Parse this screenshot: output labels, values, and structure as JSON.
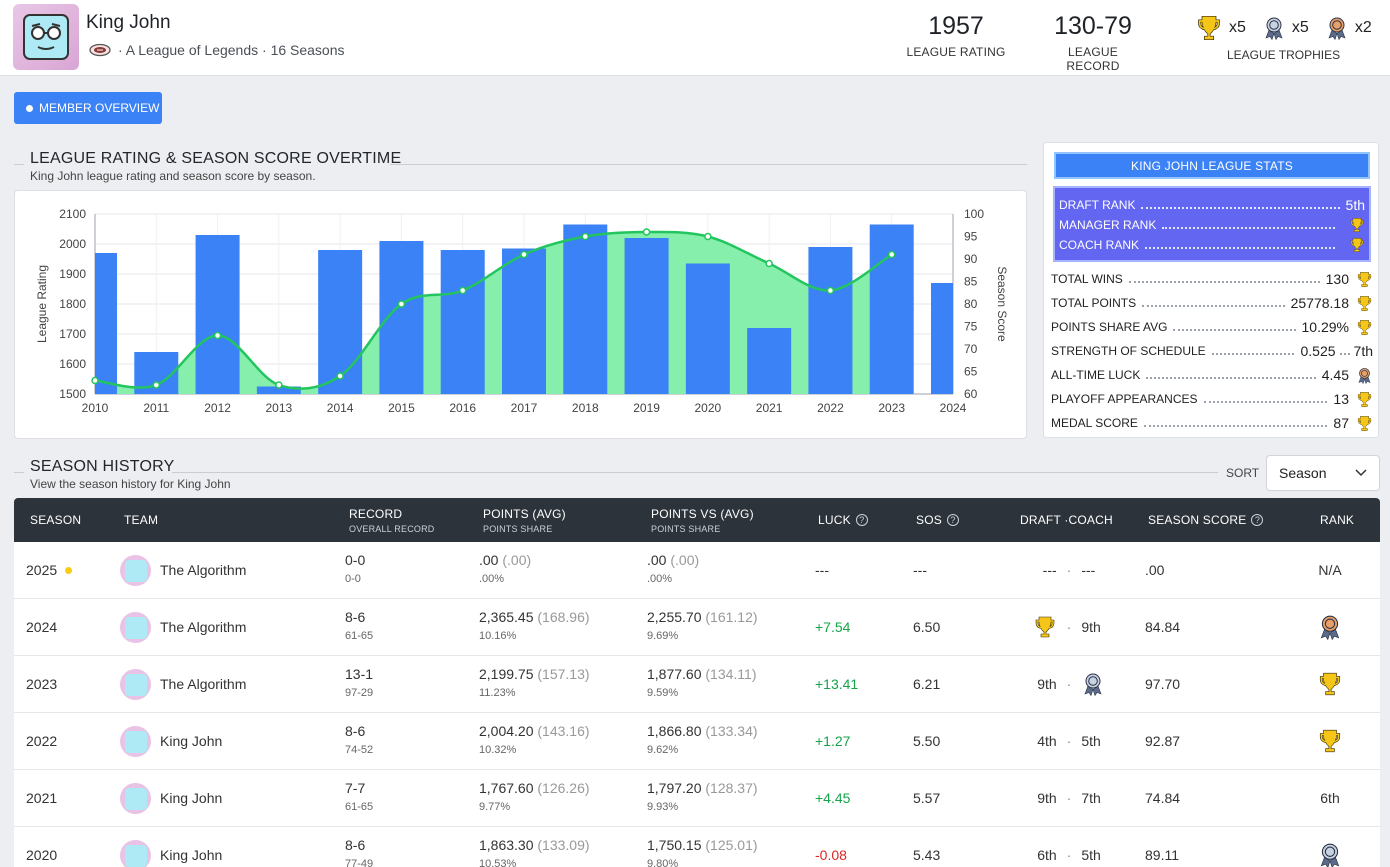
{
  "header": {
    "manager_name": "King John",
    "subline": "· A League of Legends · 16 Seasons",
    "league_rating": {
      "value": "1957",
      "label": "LEAGUE RATING"
    },
    "league_record": {
      "value": "130-79",
      "label": "LEAGUE RECORD"
    },
    "trophies": {
      "label": "LEAGUE TROPHIES",
      "gold": "x5",
      "silver": "x5",
      "bronze": "x2"
    }
  },
  "member_overview_button": "MEMBER OVERVIEW",
  "chart_section": {
    "title": "LEAGUE RATING & SEASON SCORE OVERTIME",
    "subtitle": "King John league rating and season score by season."
  },
  "chart_data": {
    "type": "bar",
    "x": [
      "2010",
      "2011",
      "2012",
      "2013",
      "2014",
      "2015",
      "2016",
      "2017",
      "2018",
      "2019",
      "2020",
      "2021",
      "2022",
      "2023",
      "2024"
    ],
    "ylabel": "League Rating",
    "y2label": "Season Score",
    "ylim": [
      1500,
      2100
    ],
    "y_ticks": [
      1500,
      1600,
      1700,
      1800,
      1900,
      2000,
      2100
    ],
    "y2lim": [
      60,
      100
    ],
    "y2_ticks": [
      60,
      65,
      70,
      75,
      80,
      85,
      90,
      95,
      100
    ],
    "series": [
      {
        "type": "bar",
        "color": "#3b82f6",
        "values": [
          1970,
          1640,
          2030,
          1525,
          1980,
          2010,
          1980,
          1985,
          2065,
          2020,
          1935,
          1720,
          1990,
          2065,
          1870
        ]
      },
      {
        "type": "area-line",
        "color": "#22c55e",
        "fill": "#86efac",
        "values": [
          63,
          62,
          73,
          62,
          64,
          80,
          83,
          91,
          95,
          96,
          95,
          89,
          83,
          91,
          null
        ]
      }
    ]
  },
  "stats_panel": {
    "title": "KING JOHN LEAGUE STATS",
    "purple_rows": [
      {
        "label": "DRAFT RANK",
        "value": "5th",
        "icon": ""
      },
      {
        "label": "MANAGER RANK",
        "value": "",
        "icon": "gold-trophy-icon"
      },
      {
        "label": "COACH RANK",
        "value": "",
        "icon": "gold-trophy-icon"
      }
    ],
    "rows": [
      {
        "label": "TOTAL WINS",
        "value": "130",
        "icon": "gold-trophy-icon"
      },
      {
        "label": "TOTAL POINTS",
        "value": "25778.18",
        "icon": "gold-trophy-icon"
      },
      {
        "label": "POINTS SHARE AVG",
        "value": "10.29%",
        "icon": "gold-trophy-icon"
      },
      {
        "label": "STRENGTH OF SCHEDULE",
        "value": "0.525",
        "extra": "7th"
      },
      {
        "label": "ALL-TIME LUCK",
        "value": "4.45",
        "icon": "bronze-medal-icon"
      },
      {
        "label": "PLAYOFF APPEARANCES",
        "value": "13",
        "icon": "gold-trophy-icon"
      },
      {
        "label": "MEDAL SCORE",
        "value": "87",
        "icon": "gold-trophy-icon"
      }
    ]
  },
  "history_section": {
    "title": "SEASON HISTORY",
    "subtitle": "View the season history for King John",
    "sort_label": "SORT",
    "sort_value": "Season"
  },
  "table": {
    "headers": {
      "season": "SEASON",
      "team": "TEAM",
      "record": "RECORD",
      "record_sub": "OVERALL RECORD",
      "points": "POINTS (AVG)",
      "points_sub": "POINTS SHARE",
      "pvs": "POINTS VS (AVG)",
      "pvs_sub": "POINTS SHARE",
      "luck": "LUCK",
      "sos": "SOS",
      "draft_coach": "DRAFT ·COACH",
      "season_score": "SEASON SCORE",
      "rank": "RANK"
    },
    "rows": [
      {
        "season": "2025",
        "team": "The Algorithm",
        "record": "0-0",
        "overall": "0-0",
        "points": ".00",
        "points_avg": "(.00)",
        "points_share": ".00%",
        "pvs": ".00",
        "pvs_avg": "(.00)",
        "pvs_share": ".00%",
        "luck": "---",
        "luck_class": "",
        "sos": "---",
        "draft": "---",
        "coach": "---",
        "score": ".00",
        "rank": "N/A",
        "rank_icon": "",
        "draft_icon": "",
        "coach_icon": "",
        "active": true
      },
      {
        "season": "2024",
        "team": "The Algorithm",
        "record": "8-6",
        "overall": "61-65",
        "points": "2,365.45",
        "points_avg": "(168.96)",
        "points_share": "10.16%",
        "pvs": "2,255.70",
        "pvs_avg": "(161.12)",
        "pvs_share": "9.69%",
        "luck": "+7.54",
        "luck_class": "pos",
        "sos": "6.50",
        "draft": "",
        "coach": "9th",
        "score": "84.84",
        "rank": "",
        "rank_icon": "bronze",
        "draft_icon": "gold",
        "coach_icon": ""
      },
      {
        "season": "2023",
        "team": "The Algorithm",
        "record": "13-1",
        "overall": "97-29",
        "points": "2,199.75",
        "points_avg": "(157.13)",
        "points_share": "11.23%",
        "pvs": "1,877.60",
        "pvs_avg": "(134.11)",
        "pvs_share": "9.59%",
        "luck": "+13.41",
        "luck_class": "pos",
        "sos": "6.21",
        "draft": "9th",
        "coach": "",
        "score": "97.70",
        "rank": "",
        "rank_icon": "gold",
        "draft_icon": "",
        "coach_icon": "silver"
      },
      {
        "season": "2022",
        "team": "King John",
        "record": "8-6",
        "overall": "74-52",
        "points": "2,004.20",
        "points_avg": "(143.16)",
        "points_share": "10.32%",
        "pvs": "1,866.80",
        "pvs_avg": "(133.34)",
        "pvs_share": "9.62%",
        "luck": "+1.27",
        "luck_class": "pos",
        "sos": "5.50",
        "draft": "4th",
        "coach": "5th",
        "score": "92.87",
        "rank": "",
        "rank_icon": "gold",
        "draft_icon": "",
        "coach_icon": ""
      },
      {
        "season": "2021",
        "team": "King John",
        "record": "7-7",
        "overall": "61-65",
        "points": "1,767.60",
        "points_avg": "(126.26)",
        "points_share": "9.77%",
        "pvs": "1,797.20",
        "pvs_avg": "(128.37)",
        "pvs_share": "9.93%",
        "luck": "+4.45",
        "luck_class": "pos",
        "sos": "5.57",
        "draft": "9th",
        "coach": "7th",
        "score": "74.84",
        "rank": "6th",
        "rank_icon": "",
        "draft_icon": "",
        "coach_icon": ""
      },
      {
        "season": "2020",
        "team": "King John",
        "record": "8-6",
        "overall": "77-49",
        "points": "1,863.30",
        "points_avg": "(133.09)",
        "points_share": "10.53%",
        "pvs": "1,750.15",
        "pvs_avg": "(125.01)",
        "pvs_share": "9.80%",
        "luck": "-0.08",
        "luck_class": "neg",
        "sos": "5.43",
        "draft": "6th",
        "coach": "5th",
        "score": "89.11",
        "rank": "",
        "rank_icon": "silver",
        "draft_icon": "",
        "coach_icon": ""
      }
    ]
  }
}
